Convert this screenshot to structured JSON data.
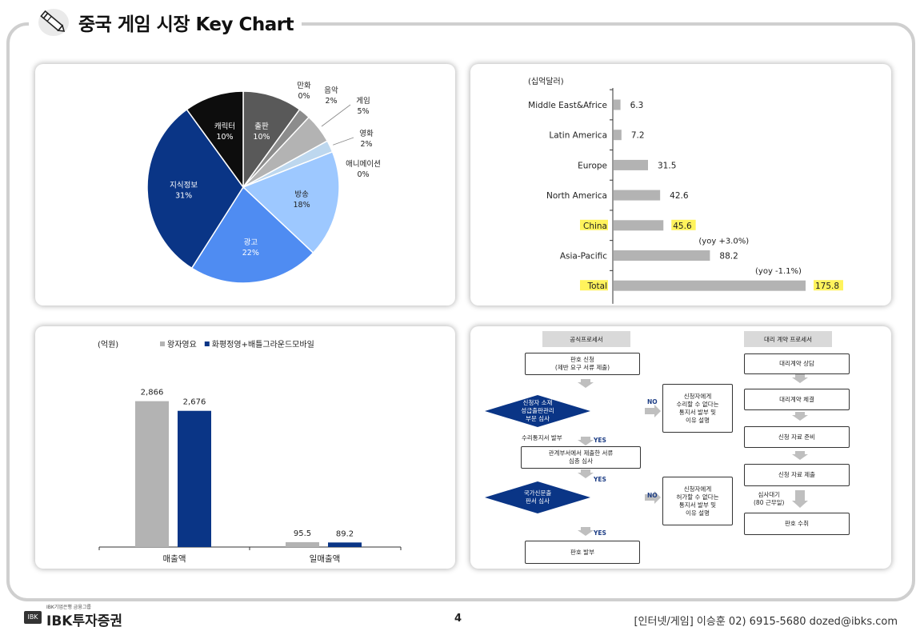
{
  "header": {
    "title": "중국 게임 시장 Key Chart",
    "icon": "pencil-icon"
  },
  "footer": {
    "logo_small": "IBK기업은행 금융그룹",
    "logo_main": "IBK투자증권",
    "page_number": "4",
    "contact": "[인터넷/게임] 이승훈 02) 6915-5680 dozed@ibks.com"
  },
  "chart_data": [
    {
      "type": "pie",
      "slices": [
        {
          "label": "출판",
          "value": 10,
          "value_label": "10%",
          "color": "#595959"
        },
        {
          "label": "만화",
          "value": 0,
          "value_label": "0%",
          "color": "#7f7f7f"
        },
        {
          "label": "음악",
          "value": 2,
          "value_label": "2%",
          "color": "#8c8c8c"
        },
        {
          "label": "게임",
          "value": 5,
          "value_label": "5%",
          "color": "#b3b3b3"
        },
        {
          "label": "영화",
          "value": 2,
          "value_label": "2%",
          "color": "#bdd7ee"
        },
        {
          "label": "애니메이션",
          "value": 0,
          "value_label": "0%",
          "color": "#dae8f6"
        },
        {
          "label": "방송",
          "value": 18,
          "value_label": "18%",
          "color": "#9dc8ff"
        },
        {
          "label": "광고",
          "value": 22,
          "value_label": "22%",
          "color": "#4f8cf2"
        },
        {
          "label": "지식정보",
          "value": 31,
          "value_label": "31%",
          "color": "#0a3586"
        },
        {
          "label": "캐릭터",
          "value": 10,
          "value_label": "10%",
          "color": "#0d0d0d"
        }
      ]
    },
    {
      "type": "bar",
      "orientation": "horizontal",
      "unit_label": "(십억달러)",
      "categories": [
        "Middle East&Africe",
        "Latin America",
        "Europe",
        "North America",
        "China",
        "Asia-Pacific",
        "Total"
      ],
      "values": [
        6.3,
        7.2,
        31.5,
        42.6,
        45.6,
        88.2,
        175.8
      ],
      "value_labels": [
        "6.3",
        "7.2",
        "31.5",
        "42.6",
        "45.6",
        "88.2",
        "175.8"
      ],
      "highlight": [
        "China",
        "Total"
      ],
      "bar_color": "#b3b3b3",
      "highlight_color": "#fff35c",
      "annotations": [
        {
          "category": "Asia-Pacific",
          "text": "(yoy +3.0%)"
        },
        {
          "category": "Total",
          "text": "(yoy -1.1%)"
        }
      ]
    },
    {
      "type": "bar",
      "unit_label": "(억원)",
      "categories": [
        "매출액",
        "일매출액"
      ],
      "series": [
        {
          "name": "왕자영요",
          "values": [
            2866,
            95.5
          ],
          "value_labels": [
            "2,866",
            "95.5"
          ],
          "color": "#b3b3b3"
        },
        {
          "name": "화평정영+배틀그라운드모바일",
          "values": [
            2676,
            89.2
          ],
          "value_labels": [
            "2,676",
            "89.2"
          ],
          "color": "#0a3586"
        }
      ],
      "ylim": [
        0,
        3300
      ]
    }
  ],
  "flow": {
    "left_header": "공식프로세서",
    "right_header": "대리 계약 프로세서",
    "apply": "판호 신청\n(제반 요구 서류 제출)",
    "review1": "신청자 소재\n성급출판관리\n부문 심사",
    "notify1": "신청자에게\n수리할 수 없다는\n통지서 발부 및\n이유 설명",
    "receipt": "수리통지서 발부",
    "relay": "관계부서에서 제출한 서류\n심층 심사",
    "review2": "국가신문출\n판서 심사",
    "notify2": "신청자에게\n허가할 수 없다는\n통지서 발부 및\n이유 설명",
    "issue": "판호 발부",
    "yes": "YES",
    "no": "NO",
    "agent_steps": [
      "대리계약 상담",
      "대리계약 체결",
      "신청 자료 준비",
      "신청 자료 제출"
    ],
    "wait": "심사대기\n(80 근무일)",
    "receive": "판호 수취"
  }
}
